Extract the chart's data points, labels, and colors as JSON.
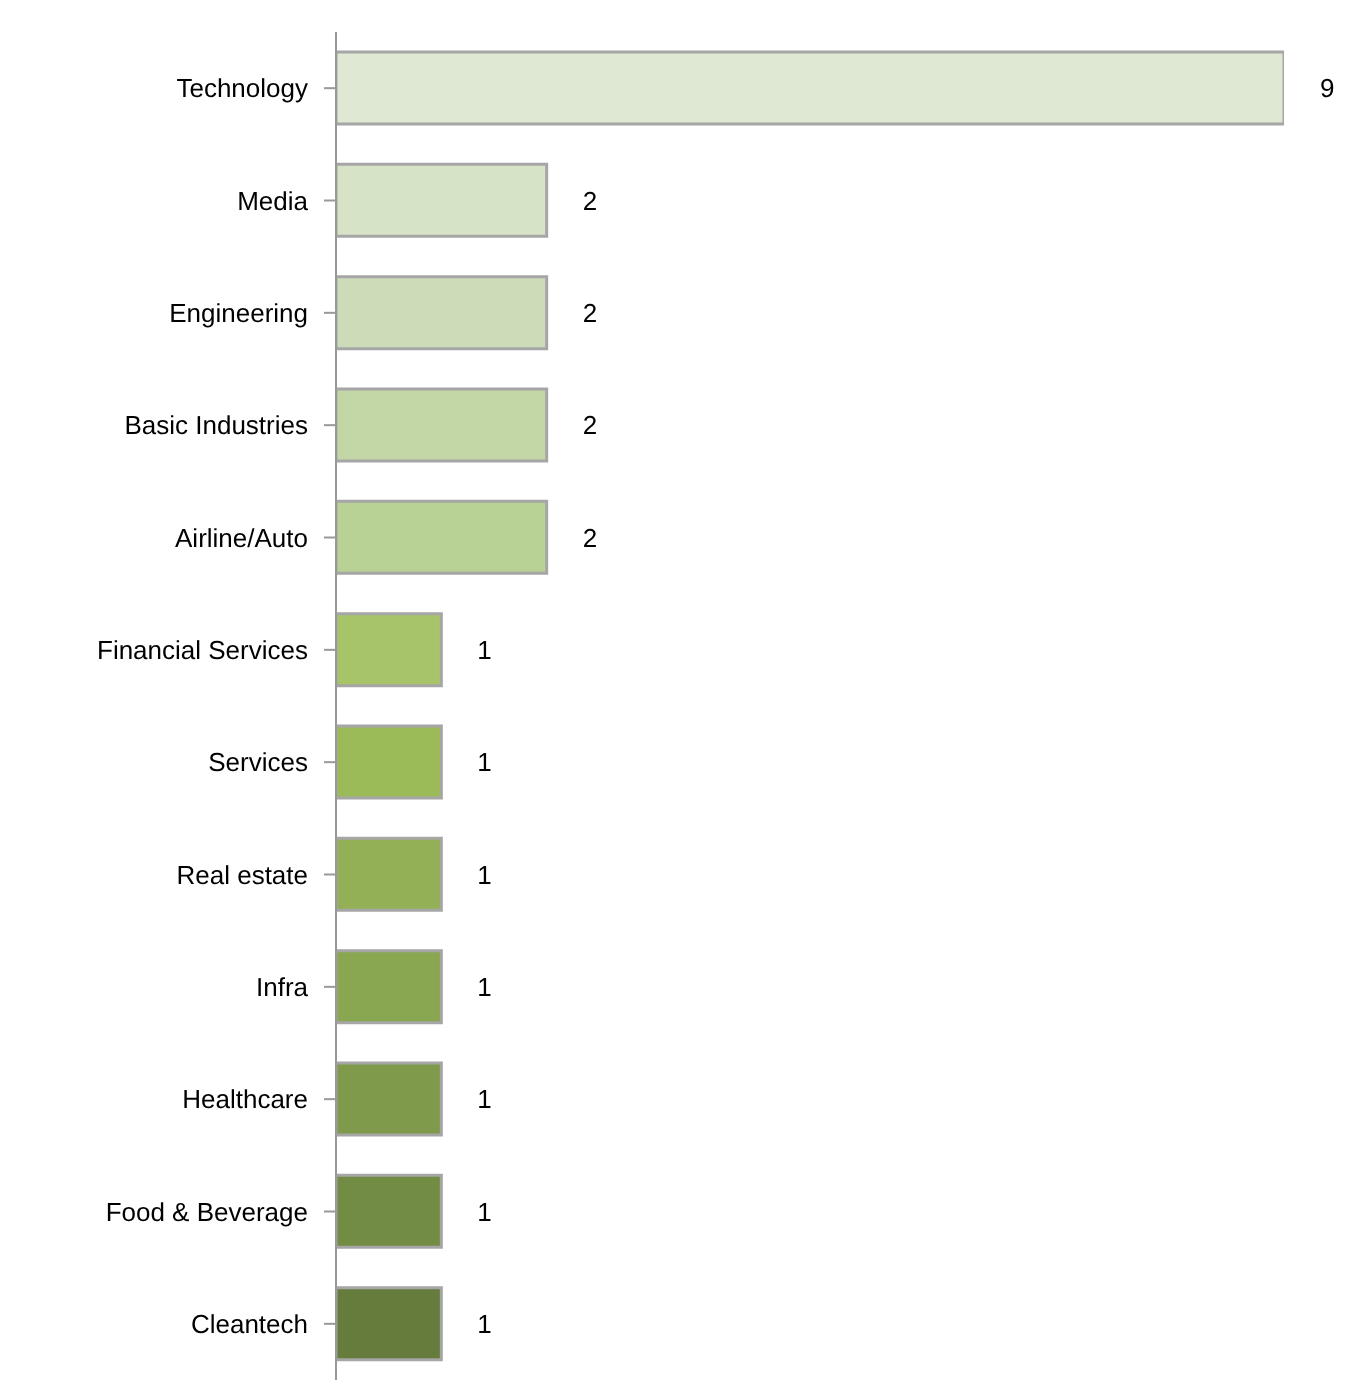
{
  "chart_data": {
    "type": "bar",
    "orientation": "horizontal",
    "categories": [
      "Technology",
      "Media",
      "Engineering",
      "Basic Industries",
      "Airline/Auto",
      "Financial Services",
      "Services",
      "Real estate",
      "Infra",
      "Healthcare",
      "Food & Beverage",
      "Cleantech"
    ],
    "values": [
      9,
      2,
      2,
      2,
      2,
      1,
      1,
      1,
      1,
      1,
      1,
      1
    ],
    "colors": [
      "#dfe8d3",
      "#d6e3c6",
      "#cddcb8",
      "#c2d6a6",
      "#b8d195",
      "#a7c469",
      "#9bbb59",
      "#93b056",
      "#89a650",
      "#7f9a4b",
      "#738c44",
      "#667c3c"
    ],
    "data_labels": true
  }
}
